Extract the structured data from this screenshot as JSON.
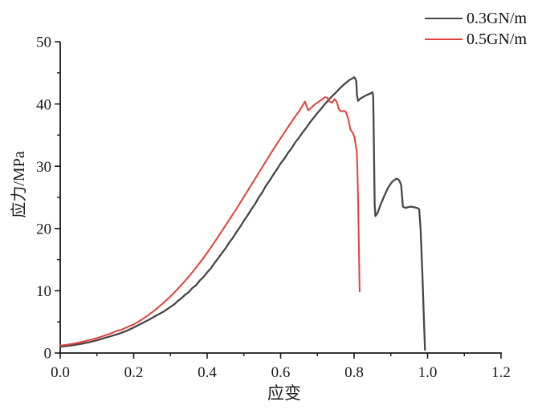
{
  "figure": {
    "background": "#ffffff"
  },
  "legend": {
    "position": "top-right",
    "items": [
      {
        "label": "0.3GN/m",
        "color": "#474747"
      },
      {
        "label": "0.5GN/m",
        "color": "#e2413d"
      }
    ]
  },
  "axes": {
    "x": {
      "label": "应变",
      "min": 0.0,
      "max": 1.2,
      "major_ticks": [
        "0.0",
        "0.2",
        "0.4",
        "0.6",
        "0.8",
        "1.0",
        "1.2"
      ],
      "minor_step": 0.1
    },
    "y": {
      "label": "应力/MPa",
      "min": 0,
      "max": 50,
      "major_ticks": [
        "0",
        "10",
        "20",
        "30",
        "40",
        "50"
      ],
      "minor_step": 5
    }
  },
  "chart_data": {
    "type": "line",
    "title": "",
    "xlabel": "应变",
    "ylabel": "应力/MPa",
    "xlim": [
      0.0,
      1.2
    ],
    "ylim": [
      0,
      50
    ],
    "grid": false,
    "legend_position": "top-right",
    "series": [
      {
        "name": "0.3GN/m",
        "color": "#474747",
        "points": [
          [
            0.0,
            1.0
          ],
          [
            0.02,
            1.15
          ],
          [
            0.04,
            1.3
          ],
          [
            0.06,
            1.5
          ],
          [
            0.08,
            1.75
          ],
          [
            0.1,
            2.05
          ],
          [
            0.12,
            2.4
          ],
          [
            0.14,
            2.75
          ],
          [
            0.16,
            3.1
          ],
          [
            0.18,
            3.55
          ],
          [
            0.2,
            4.1
          ],
          [
            0.22,
            4.7
          ],
          [
            0.24,
            5.3
          ],
          [
            0.26,
            5.95
          ],
          [
            0.28,
            6.6
          ],
          [
            0.3,
            7.4
          ],
          [
            0.31,
            7.8
          ],
          [
            0.32,
            8.35
          ],
          [
            0.33,
            8.8
          ],
          [
            0.34,
            9.35
          ],
          [
            0.35,
            9.8
          ],
          [
            0.36,
            10.45
          ],
          [
            0.37,
            10.9
          ],
          [
            0.38,
            11.65
          ],
          [
            0.39,
            12.2
          ],
          [
            0.4,
            12.95
          ],
          [
            0.41,
            13.6
          ],
          [
            0.42,
            14.45
          ],
          [
            0.43,
            15.2
          ],
          [
            0.44,
            16.05
          ],
          [
            0.45,
            16.8
          ],
          [
            0.46,
            17.75
          ],
          [
            0.47,
            18.5
          ],
          [
            0.48,
            19.45
          ],
          [
            0.49,
            20.3
          ],
          [
            0.5,
            21.25
          ],
          [
            0.51,
            22.1
          ],
          [
            0.52,
            23.05
          ],
          [
            0.53,
            23.9
          ],
          [
            0.54,
            24.95
          ],
          [
            0.55,
            25.8
          ],
          [
            0.56,
            26.85
          ],
          [
            0.57,
            27.7
          ],
          [
            0.58,
            28.65
          ],
          [
            0.59,
            29.5
          ],
          [
            0.6,
            30.45
          ],
          [
            0.61,
            31.2
          ],
          [
            0.62,
            32.15
          ],
          [
            0.63,
            32.9
          ],
          [
            0.64,
            33.85
          ],
          [
            0.65,
            34.6
          ],
          [
            0.66,
            35.45
          ],
          [
            0.67,
            36.2
          ],
          [
            0.68,
            37.05
          ],
          [
            0.69,
            37.8
          ],
          [
            0.7,
            38.55
          ],
          [
            0.71,
            39.2
          ],
          [
            0.72,
            39.95
          ],
          [
            0.73,
            40.6
          ],
          [
            0.74,
            41.25
          ],
          [
            0.75,
            41.8
          ],
          [
            0.76,
            42.45
          ],
          [
            0.77,
            43.0
          ],
          [
            0.78,
            43.5
          ],
          [
            0.79,
            43.95
          ],
          [
            0.797,
            44.15
          ],
          [
            0.8,
            44.3
          ],
          [
            0.803,
            44.1
          ],
          [
            0.806,
            43.7
          ],
          [
            0.808,
            41.3
          ],
          [
            0.811,
            40.5
          ],
          [
            0.818,
            40.9
          ],
          [
            0.827,
            41.2
          ],
          [
            0.836,
            41.5
          ],
          [
            0.845,
            41.7
          ],
          [
            0.85,
            41.9
          ],
          [
            0.852,
            41.2
          ],
          [
            0.854,
            33.0
          ],
          [
            0.856,
            24.0
          ],
          [
            0.858,
            22.0
          ],
          [
            0.864,
            22.5
          ],
          [
            0.872,
            23.8
          ],
          [
            0.882,
            25.2
          ],
          [
            0.892,
            26.5
          ],
          [
            0.902,
            27.4
          ],
          [
            0.912,
            27.9
          ],
          [
            0.918,
            28.0
          ],
          [
            0.924,
            27.6
          ],
          [
            0.928,
            27.0
          ],
          [
            0.93,
            25.6
          ],
          [
            0.933,
            23.5
          ],
          [
            0.94,
            23.3
          ],
          [
            0.948,
            23.45
          ],
          [
            0.956,
            23.5
          ],
          [
            0.964,
            23.4
          ],
          [
            0.972,
            23.3
          ],
          [
            0.977,
            23.1
          ],
          [
            0.981,
            20.0
          ],
          [
            0.986,
            12.5
          ],
          [
            0.99,
            5.5
          ],
          [
            0.993,
            0.5
          ]
        ]
      },
      {
        "name": "0.5GN/m",
        "color": "#e2413d",
        "points": [
          [
            0.0,
            1.2
          ],
          [
            0.02,
            1.35
          ],
          [
            0.04,
            1.55
          ],
          [
            0.06,
            1.8
          ],
          [
            0.08,
            2.1
          ],
          [
            0.1,
            2.4
          ],
          [
            0.12,
            2.8
          ],
          [
            0.14,
            3.2
          ],
          [
            0.155,
            3.6
          ],
          [
            0.165,
            3.7
          ],
          [
            0.18,
            4.1
          ],
          [
            0.2,
            4.6
          ],
          [
            0.22,
            5.3
          ],
          [
            0.24,
            6.1
          ],
          [
            0.26,
            7.0
          ],
          [
            0.28,
            8.0
          ],
          [
            0.3,
            9.1
          ],
          [
            0.32,
            10.3
          ],
          [
            0.34,
            11.6
          ],
          [
            0.36,
            13.0
          ],
          [
            0.38,
            14.5
          ],
          [
            0.4,
            16.1
          ],
          [
            0.42,
            17.8
          ],
          [
            0.44,
            19.6
          ],
          [
            0.46,
            21.4
          ],
          [
            0.48,
            23.2
          ],
          [
            0.5,
            25.1
          ],
          [
            0.52,
            27.0
          ],
          [
            0.54,
            28.9
          ],
          [
            0.56,
            30.8
          ],
          [
            0.58,
            32.7
          ],
          [
            0.6,
            34.5
          ],
          [
            0.62,
            36.3
          ],
          [
            0.64,
            38.0
          ],
          [
            0.652,
            39.0
          ],
          [
            0.66,
            39.8
          ],
          [
            0.666,
            40.4
          ],
          [
            0.671,
            39.6
          ],
          [
            0.675,
            39.0
          ],
          [
            0.682,
            39.3
          ],
          [
            0.692,
            39.9
          ],
          [
            0.702,
            40.3
          ],
          [
            0.712,
            40.7
          ],
          [
            0.72,
            41.1
          ],
          [
            0.727,
            41.0
          ],
          [
            0.733,
            40.4
          ],
          [
            0.74,
            40.2
          ],
          [
            0.747,
            40.8
          ],
          [
            0.753,
            40.3
          ],
          [
            0.759,
            39.1
          ],
          [
            0.766,
            38.8
          ],
          [
            0.772,
            38.9
          ],
          [
            0.778,
            38.7
          ],
          [
            0.784,
            37.6
          ],
          [
            0.79,
            35.9
          ],
          [
            0.796,
            35.4
          ],
          [
            0.801,
            34.7
          ],
          [
            0.805,
            33.1
          ],
          [
            0.807,
            32.6
          ],
          [
            0.809,
            29.5
          ],
          [
            0.811,
            24.5
          ],
          [
            0.813,
            17.5
          ],
          [
            0.815,
            9.9
          ]
        ]
      }
    ]
  }
}
